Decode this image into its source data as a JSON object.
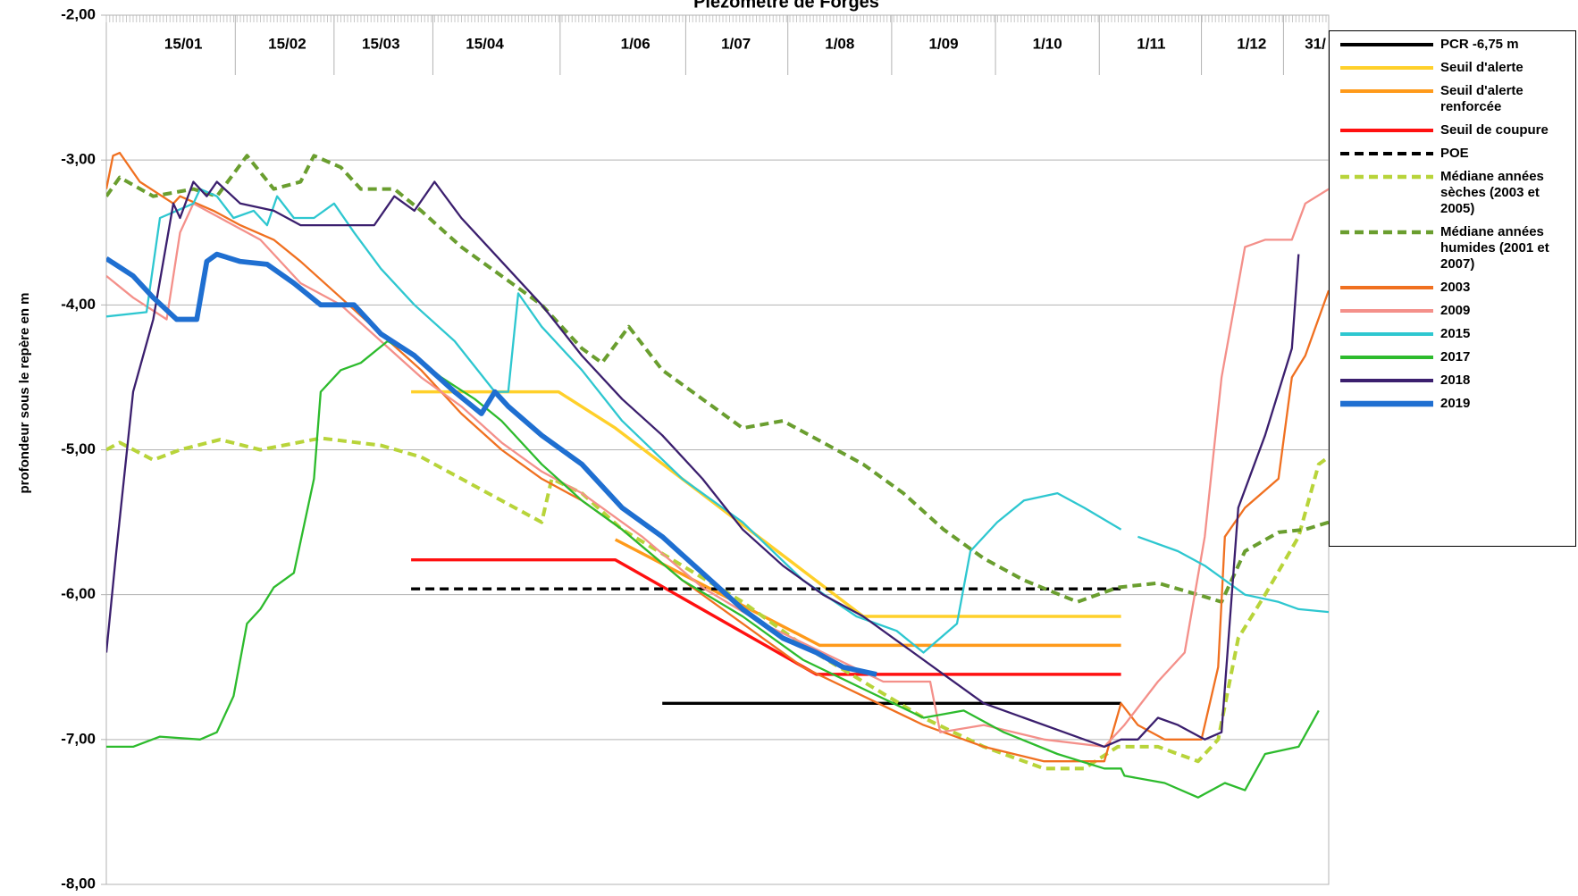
{
  "chart_data": {
    "type": "line",
    "title": "Piezomètre de Forges",
    "ylabel": "profondeur sous le repère en m",
    "xlim": [
      0,
      365
    ],
    "ylim": [
      -8,
      -2
    ],
    "yticks": [
      {
        "value": -2,
        "label": "-2,00"
      },
      {
        "value": -3,
        "label": "-3,00"
      },
      {
        "value": -4,
        "label": "-4,00"
      },
      {
        "value": -5,
        "label": "-5,00"
      },
      {
        "value": -6,
        "label": "-6,00"
      },
      {
        "value": -7,
        "label": "-7,00"
      },
      {
        "value": -8,
        "label": "-8,00"
      }
    ],
    "xticks": [
      {
        "value": 23,
        "label": "15/01"
      },
      {
        "value": 54,
        "label": "15/02"
      },
      {
        "value": 82,
        "label": "15/03"
      },
      {
        "value": 113,
        "label": "15/04"
      },
      {
        "value": 158,
        "label": "1/06"
      },
      {
        "value": 188,
        "label": "1/07"
      },
      {
        "value": 219,
        "label": "1/08"
      },
      {
        "value": 250,
        "label": "1/09"
      },
      {
        "value": 281,
        "label": "1/10"
      },
      {
        "value": 312,
        "label": "1/11"
      },
      {
        "value": 342,
        "label": "1/12"
      },
      {
        "value": 361,
        "label": "31/"
      }
    ],
    "grid": true,
    "legend": "right",
    "series": [
      {
        "name": "PCR -6,75 m",
        "color": "#000000",
        "width": 3,
        "dash": false,
        "x": [
          166,
          303
        ],
        "values": [
          -6.75,
          -6.75
        ]
      },
      {
        "name": "Seuil d'alerte",
        "color": "#ffd02a",
        "width": 3,
        "dash": false,
        "x": [
          91,
          135,
          152,
          226,
          303
        ],
        "values": [
          -4.6,
          -4.6,
          -4.85,
          -6.15,
          -6.15
        ]
      },
      {
        "name": "Seuil d'alerte renforcée",
        "color": "#ff9a1a",
        "width": 3,
        "dash": false,
        "x": [
          152,
          213,
          303
        ],
        "values": [
          -5.62,
          -6.35,
          -6.35
        ]
      },
      {
        "name": "Seuil de coupure",
        "color": "#ff1010",
        "width": 3,
        "dash": false,
        "x": [
          91,
          152,
          212,
          303
        ],
        "values": [
          -5.76,
          -5.76,
          -6.55,
          -6.55
        ]
      },
      {
        "name": "POE",
        "color": "#000000",
        "width": 3,
        "dash": true,
        "x": [
          91,
          303
        ],
        "values": [
          -5.96,
          -5.96
        ]
      },
      {
        "name": "Médiane années sèches (2003 et 2005)",
        "color": "#b8d43a",
        "width": 3.5,
        "dash": true,
        "x": [
          0,
          4,
          14,
          22,
          34,
          46,
          64,
          82,
          94,
          106,
          118,
          130,
          133,
          142,
          154,
          172,
          190,
          208,
          226,
          244,
          262,
          280,
          292,
          302,
          314,
          326,
          332,
          338,
          346,
          356,
          362,
          365
        ],
        "values": [
          -5.0,
          -4.95,
          -5.07,
          -5.0,
          -4.93,
          -5.0,
          -4.92,
          -4.97,
          -5.05,
          -5.2,
          -5.35,
          -5.5,
          -5.2,
          -5.3,
          -5.55,
          -5.8,
          -6.05,
          -6.35,
          -6.6,
          -6.85,
          -7.05,
          -7.2,
          -7.2,
          -7.05,
          -7.05,
          -7.15,
          -7.0,
          -6.3,
          -6.0,
          -5.6,
          -5.1,
          -5.05
        ]
      },
      {
        "name": "Médiane années humides (2001 et 2007)",
        "color": "#6a9e2f",
        "width": 3.5,
        "dash": true,
        "x": [
          0,
          4,
          14,
          26,
          33,
          42,
          50,
          58,
          62,
          70,
          76,
          86,
          94,
          106,
          118,
          130,
          142,
          148,
          156,
          166,
          178,
          190,
          202,
          214,
          226,
          238,
          250,
          262,
          274,
          290,
          302,
          314,
          326,
          333,
          340,
          350,
          358,
          365
        ],
        "values": [
          -3.25,
          -3.12,
          -3.25,
          -3.2,
          -3.25,
          -2.97,
          -3.2,
          -3.15,
          -2.97,
          -3.05,
          -3.2,
          -3.2,
          -3.35,
          -3.6,
          -3.8,
          -4.0,
          -4.3,
          -4.4,
          -4.15,
          -4.45,
          -4.65,
          -4.85,
          -4.8,
          -4.95,
          -5.1,
          -5.3,
          -5.55,
          -5.75,
          -5.9,
          -6.05,
          -5.95,
          -5.92,
          -6.0,
          -6.05,
          -5.7,
          -5.57,
          -5.55,
          -5.5
        ]
      },
      {
        "name": "2003",
        "color": "#f07020",
        "width": 2,
        "dash": false,
        "x": [
          0,
          2,
          4,
          10,
          20,
          22,
          27,
          32,
          40,
          50,
          58,
          70,
          82,
          94,
          106,
          118,
          130,
          142,
          154,
          172,
          190,
          208,
          226,
          244,
          262,
          280,
          298,
          303,
          308,
          316,
          327,
          332,
          334,
          340,
          350,
          354,
          358,
          365
        ],
        "values": [
          -3.2,
          -2.97,
          -2.95,
          -3.15,
          -3.3,
          -3.25,
          -3.3,
          -3.35,
          -3.45,
          -3.55,
          -3.7,
          -3.95,
          -4.2,
          -4.45,
          -4.75,
          -5.0,
          -5.2,
          -5.35,
          -5.55,
          -5.9,
          -6.2,
          -6.5,
          -6.7,
          -6.9,
          -7.05,
          -7.15,
          -7.15,
          -6.75,
          -6.9,
          -7.0,
          -7.0,
          -6.5,
          -5.6,
          -5.4,
          -5.2,
          -4.5,
          -4.35,
          -3.9
        ]
      },
      {
        "name": "2009",
        "color": "#f4908a",
        "width": 2,
        "dash": false,
        "x": [
          0,
          8,
          18,
          22,
          26,
          34,
          46,
          58,
          70,
          82,
          94,
          106,
          118,
          130,
          142,
          160,
          178,
          196,
          214,
          232,
          246,
          249,
          262,
          280,
          298,
          304,
          314,
          322,
          328,
          333,
          340,
          346,
          354,
          358,
          365
        ],
        "values": [
          -3.8,
          -3.95,
          -4.1,
          -3.5,
          -3.3,
          -3.4,
          -3.55,
          -3.85,
          -4.0,
          -4.25,
          -4.5,
          -4.7,
          -4.95,
          -5.15,
          -5.3,
          -5.6,
          -5.95,
          -6.2,
          -6.4,
          -6.6,
          -6.6,
          -6.95,
          -6.9,
          -7.0,
          -7.05,
          -6.9,
          -6.6,
          -6.4,
          -5.6,
          -4.5,
          -3.6,
          -3.55,
          -3.55,
          -3.3,
          -3.2
        ]
      },
      {
        "name": "2015",
        "color": "#2ec7d0",
        "width": 2,
        "dash": false,
        "x": [
          0,
          12,
          16,
          21,
          26,
          28,
          33,
          38,
          44,
          48,
          51,
          56,
          62,
          68,
          74,
          82,
          92,
          104,
          116,
          120,
          123,
          130,
          142,
          154,
          172,
          190,
          208,
          224,
          236,
          244,
          254,
          258,
          266,
          274,
          284,
          292,
          303,
          306,
          308,
          320,
          328,
          340,
          350,
          356,
          365
        ],
        "values": [
          -4.08,
          -4.05,
          -3.4,
          -3.35,
          -3.3,
          -3.2,
          -3.25,
          -3.4,
          -3.35,
          -3.45,
          -3.25,
          -3.4,
          -3.4,
          -3.3,
          -3.5,
          -3.75,
          -4.0,
          -4.25,
          -4.6,
          -4.6,
          -3.92,
          -4.15,
          -4.45,
          -4.8,
          -5.2,
          -5.5,
          -5.9,
          -6.15,
          -6.25,
          -6.4,
          -6.2,
          -5.7,
          -5.5,
          -5.35,
          -5.3,
          -5.4,
          -5.55,
          null,
          -5.6,
          -5.7,
          -5.8,
          -6.0,
          -6.05,
          -6.1,
          -6.12
        ]
      },
      {
        "name": "2017",
        "color": "#2dbb2d",
        "width": 2,
        "dash": false,
        "x": [
          0,
          8,
          16,
          28,
          33,
          38,
          42,
          46,
          50,
          56,
          62,
          64,
          70,
          76,
          84,
          92,
          100,
          110,
          118,
          130,
          142,
          154,
          172,
          190,
          208,
          226,
          244,
          256,
          268,
          284,
          298,
          303,
          304,
          316,
          326,
          334,
          340,
          346,
          356,
          362
        ],
        "values": [
          -7.05,
          -7.05,
          -6.98,
          -7.0,
          -6.95,
          -6.7,
          -6.2,
          -6.1,
          -5.95,
          -5.85,
          -5.2,
          -4.6,
          -4.45,
          -4.4,
          -4.25,
          -4.35,
          -4.5,
          -4.65,
          -4.8,
          -5.1,
          -5.35,
          -5.55,
          -5.9,
          -6.15,
          -6.45,
          -6.65,
          -6.85,
          -6.8,
          -6.95,
          -7.1,
          -7.2,
          -7.2,
          -7.25,
          -7.3,
          -7.4,
          -7.3,
          -7.35,
          -7.1,
          -7.05,
          -6.8
        ]
      },
      {
        "name": "2018",
        "color": "#3b1f6e",
        "width": 2,
        "dash": false,
        "x": [
          0,
          3,
          8,
          14,
          20,
          22,
          26,
          30,
          33,
          40,
          50,
          58,
          68,
          80,
          86,
          92,
          98,
          106,
          118,
          130,
          142,
          154,
          166,
          178,
          190,
          202,
          214,
          226,
          238,
          250,
          262,
          274,
          286,
          298,
          303,
          308,
          314,
          320,
          328,
          333,
          338,
          346,
          354,
          356
        ],
        "values": [
          -6.4,
          -5.7,
          -4.6,
          -4.1,
          -3.3,
          -3.4,
          -3.15,
          -3.25,
          -3.15,
          -3.3,
          -3.35,
          -3.45,
          -3.45,
          -3.45,
          -3.25,
          -3.35,
          -3.15,
          -3.4,
          -3.7,
          -4.0,
          -4.35,
          -4.65,
          -4.9,
          -5.2,
          -5.55,
          -5.8,
          -6.0,
          -6.15,
          -6.35,
          -6.55,
          -6.75,
          -6.85,
          -6.95,
          -7.05,
          -7.0,
          -7.0,
          -6.85,
          -6.9,
          -7.0,
          -6.95,
          -5.4,
          -4.9,
          -4.3,
          -3.65
        ]
      },
      {
        "name": "2019",
        "color": "#1f6fd1",
        "width": 5,
        "dash": false,
        "x": [
          0,
          8,
          14,
          21,
          27,
          30,
          33,
          40,
          48,
          56,
          64,
          74,
          82,
          92,
          104,
          112,
          116,
          120,
          130,
          142,
          154,
          166,
          178,
          190,
          202,
          212,
          220,
          230
        ],
        "values": [
          -3.68,
          -3.8,
          -3.95,
          -4.1,
          -4.1,
          -3.7,
          -3.65,
          -3.7,
          -3.72,
          -3.85,
          -4.0,
          -4.0,
          -4.2,
          -4.35,
          -4.6,
          -4.75,
          -4.6,
          -4.7,
          -4.9,
          -5.1,
          -5.4,
          -5.6,
          -5.85,
          -6.1,
          -6.3,
          -6.4,
          -6.5,
          -6.55
        ]
      }
    ]
  }
}
